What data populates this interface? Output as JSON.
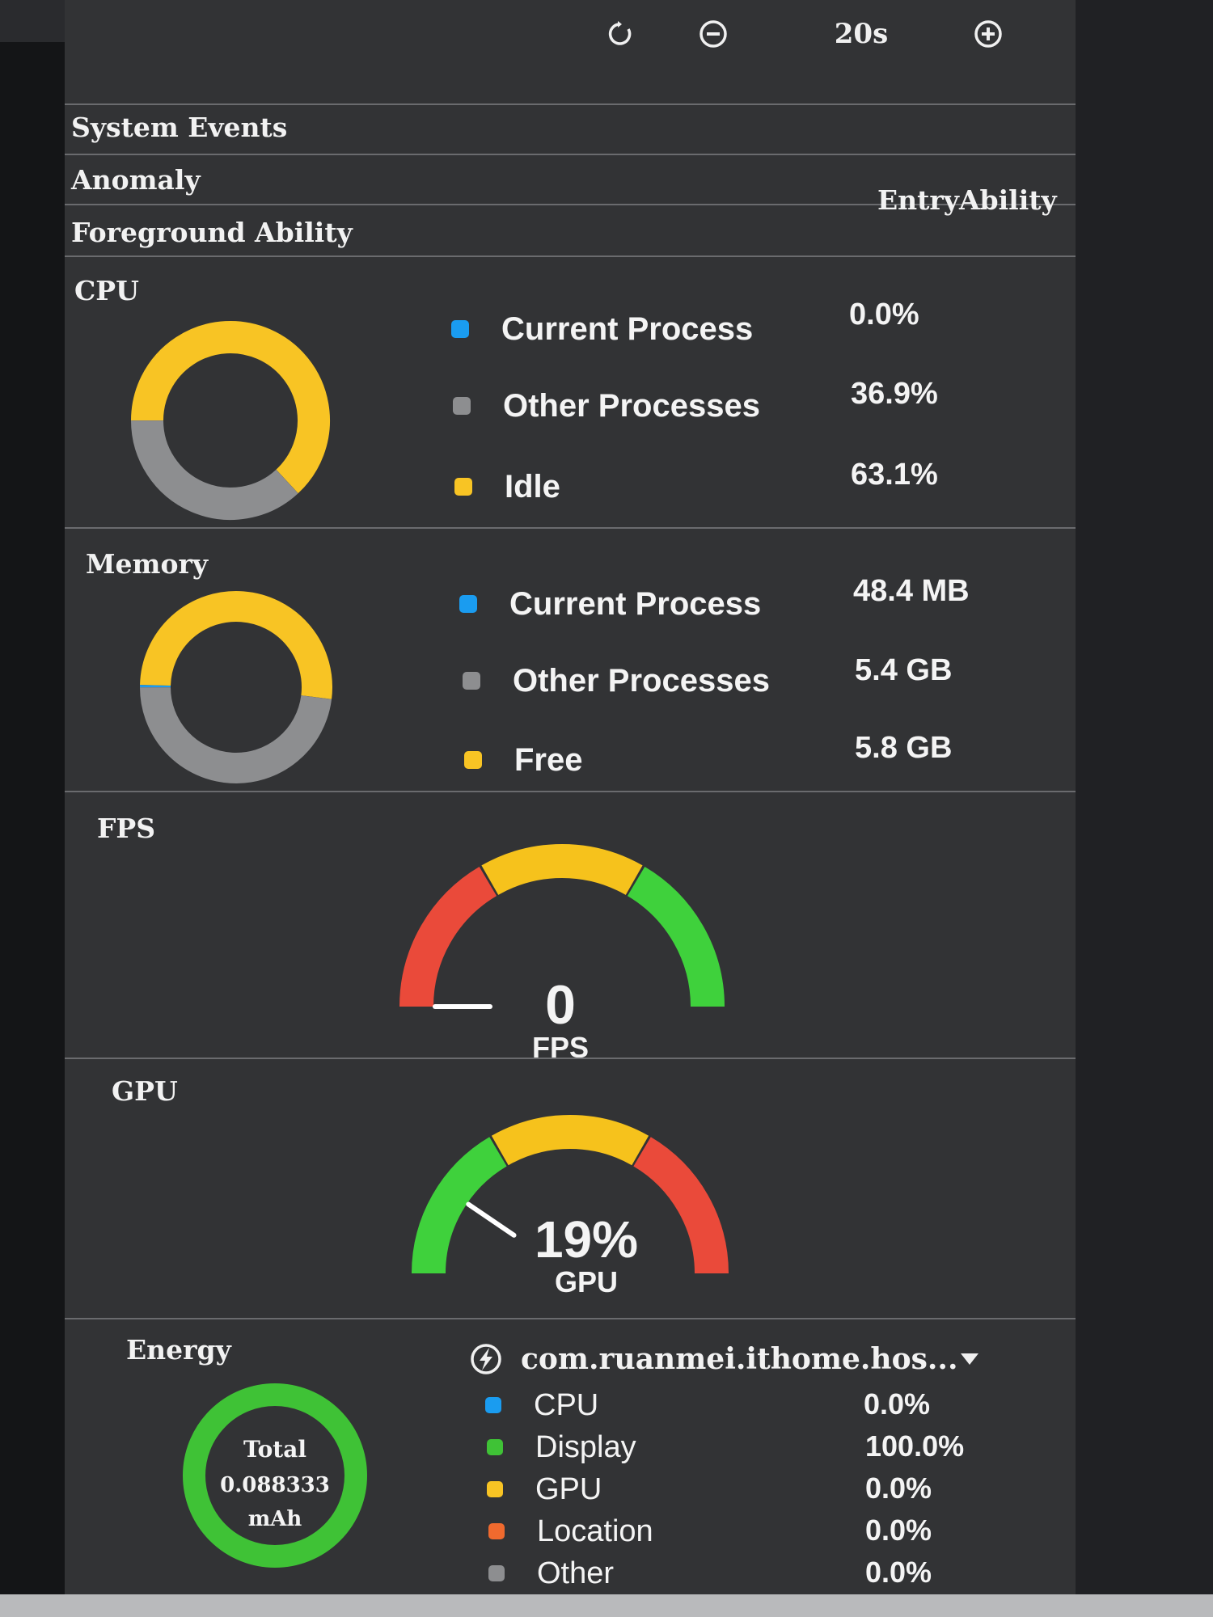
{
  "toolbar": {
    "reset_icon": "refresh-icon",
    "zoom_out_icon": "zoom-out-icon",
    "zoom_value": "20s",
    "zoom_in_icon": "zoom-in-icon"
  },
  "rows": {
    "system_events": "System Events",
    "anomaly": "Anomaly",
    "foreground_ability": "Foreground Ability",
    "foreground_ability_value": "EntryAbility"
  },
  "cpu": {
    "title": "CPU",
    "legend": [
      {
        "label": "Current Process",
        "value": "0.0%",
        "color": "#1a9cf0"
      },
      {
        "label": "Other Processes",
        "value": "36.9%",
        "color": "#8d8e90"
      },
      {
        "label": "Idle",
        "value": "63.1%",
        "color": "#f8c424"
      }
    ],
    "fractions": {
      "current": 0.0,
      "other": 0.369,
      "idle": 0.631
    }
  },
  "memory": {
    "title": "Memory",
    "legend": [
      {
        "label": "Current Process",
        "value": "48.4 MB",
        "color": "#1a9cf0"
      },
      {
        "label": "Other Processes",
        "value": "5.4 GB",
        "color": "#8d8e90"
      },
      {
        "label": "Free",
        "value": "5.8 GB",
        "color": "#f8c424"
      }
    ],
    "fractions": {
      "current": 0.004,
      "other": 0.48,
      "free": 0.516
    }
  },
  "fps": {
    "title": "FPS",
    "value": "0",
    "unit": "FPS",
    "level": 0.0,
    "colors": {
      "low": "#ea4a3a",
      "mid": "#f6c21c",
      "high": "#3fd13c"
    }
  },
  "gpu": {
    "title": "GPU",
    "value": "19%",
    "unit": "GPU",
    "level": 0.19,
    "colors": {
      "low": "#3fd13c",
      "mid": "#f6c21c",
      "high": "#ea4a3a"
    }
  },
  "energy": {
    "title": "Energy",
    "total_label": "Total",
    "total_value": "0.088333",
    "total_unit": "mAh",
    "ring_color": "#3fc236",
    "package_icon": "lightning-icon",
    "package": "com.ruanmei.ithome.hos...",
    "dropdown_icon": "triangle-down-icon",
    "legend": [
      {
        "label": "CPU",
        "value": "0.0%",
        "color": "#1a9cf0"
      },
      {
        "label": "Display",
        "value": "100.0%",
        "color": "#3fc236"
      },
      {
        "label": "GPU",
        "value": "0.0%",
        "color": "#f8c424"
      },
      {
        "label": "Location",
        "value": "0.0%",
        "color": "#f06a2e"
      },
      {
        "label": "Other",
        "value": "0.0%",
        "color": "#8d8e90"
      }
    ]
  }
}
